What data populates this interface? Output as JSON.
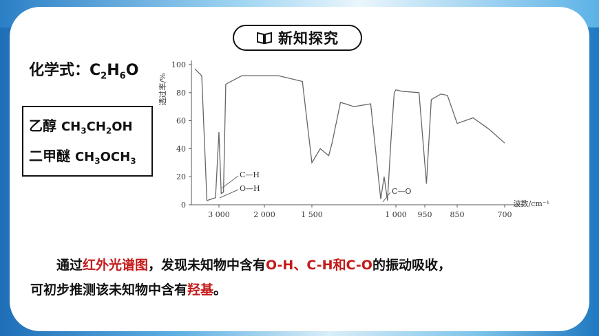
{
  "header": {
    "title": "新知探究"
  },
  "formula": {
    "label": "化学式：",
    "parts": [
      "C",
      "2",
      "H",
      "6",
      "O"
    ]
  },
  "compounds": [
    {
      "name": "乙醇",
      "formula_parts": [
        "CH",
        "3",
        "CH",
        "2",
        "OH"
      ]
    },
    {
      "name": "二甲醚",
      "formula_parts": [
        "CH",
        "3",
        "OCH",
        "3"
      ]
    }
  ],
  "chart_data": {
    "type": "line",
    "ylabel": "透过率/%",
    "xlabel": "波数/cm⁻¹",
    "y_ticks": [
      "0",
      "20",
      "40",
      "60",
      "80",
      "100"
    ],
    "x_ticks": [
      "3 000",
      "2 000",
      "1 500",
      "1 000",
      "950",
      "850",
      "700"
    ],
    "ylim": [
      0,
      100
    ],
    "annotations": [
      "C—H",
      "O—H",
      "C—O"
    ],
    "series": [
      {
        "x": [
          3700,
          3500,
          3350,
          3100,
          3000,
          2950,
          2900,
          2850,
          2500,
          2000,
          1850,
          1600,
          1500,
          1450,
          1400,
          1380,
          1330,
          1300,
          1250,
          1150,
          1090,
          1070,
          1050,
          1030,
          1010,
          1000,
          990,
          960,
          945,
          930,
          900,
          880,
          850,
          800,
          750,
          700
        ],
        "y": [
          97,
          92,
          3,
          5,
          52,
          8,
          9,
          86,
          92,
          92,
          92,
          88,
          30,
          40,
          35,
          44,
          73,
          72,
          70,
          72,
          4,
          20,
          3,
          45,
          80,
          82,
          81,
          80,
          15,
          75,
          79,
          78,
          58,
          62,
          54,
          44
        ]
      }
    ]
  },
  "paragraph": {
    "line1_a": "通过",
    "line1_red1": "红外光谱图",
    "line1_b": "，发现未知物中含有",
    "line1_red2": "O-H、C-H和C-O",
    "line1_c": "的振动吸收，",
    "line2_a": "可初步推测该未知物中含有",
    "line2_red": "羟基",
    "line2_b": "。"
  }
}
